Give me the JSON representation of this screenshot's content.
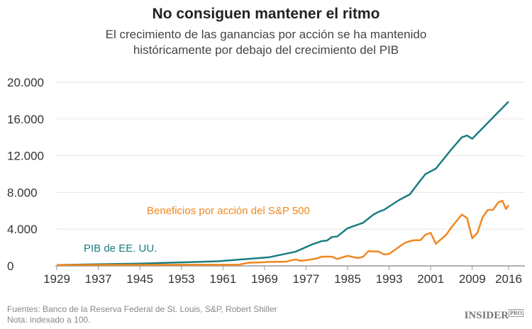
{
  "chart_data": {
    "type": "line",
    "title": "No consiguen mantener el ritmo",
    "subtitle": "El crecimiento de las ganancias por acción se ha mantenido históricamente por debajo del crecimiento del PIB",
    "xlabel": "",
    "ylabel": "",
    "xlim": [
      1929,
      2016
    ],
    "ylim": [
      0,
      20000
    ],
    "x_ticks": [
      "1929",
      "1937",
      "1945",
      "1953",
      "1961",
      "1969",
      "1977",
      "1985",
      "1993",
      "2001",
      "2009",
      "2016"
    ],
    "y_ticks": [
      "0",
      "4.000",
      "8.000",
      "12.000",
      "16.000",
      "20.000"
    ],
    "grid": true,
    "series": [
      {
        "name": "PIB de EE. UU.",
        "color": "#1b7d82",
        "points": [
          [
            1929,
            100
          ],
          [
            1945,
            250
          ],
          [
            1960,
            500
          ],
          [
            1970,
            950
          ],
          [
            1975,
            1550
          ],
          [
            1978,
            2300
          ],
          [
            1980,
            2700
          ],
          [
            1981,
            2750
          ],
          [
            1982,
            3150
          ],
          [
            1983,
            3200
          ],
          [
            1985,
            4100
          ],
          [
            1988,
            4700
          ],
          [
            1990,
            5600
          ],
          [
            1991,
            5900
          ],
          [
            1992,
            6100
          ],
          [
            1995,
            7200
          ],
          [
            1997,
            7800
          ],
          [
            1999,
            9300
          ],
          [
            2000,
            10000
          ],
          [
            2002,
            10600
          ],
          [
            2005,
            12700
          ],
          [
            2007,
            14000
          ],
          [
            2008,
            14200
          ],
          [
            2009,
            13850
          ],
          [
            2016,
            17900
          ]
        ]
      },
      {
        "name": "Beneficios por acción del S&P 500",
        "color": "#f0871f",
        "points": [
          [
            1929,
            100
          ],
          [
            1952,
            130
          ],
          [
            1964,
            130
          ],
          [
            1966,
            350
          ],
          [
            1968,
            380
          ],
          [
            1970,
            430
          ],
          [
            1973,
            450
          ],
          [
            1975,
            700
          ],
          [
            1976,
            550
          ],
          [
            1978,
            700
          ],
          [
            1979,
            800
          ],
          [
            1980,
            1000
          ],
          [
            1982,
            1000
          ],
          [
            1983,
            750
          ],
          [
            1985,
            1100
          ],
          [
            1987,
            850
          ],
          [
            1988,
            1000
          ],
          [
            1989,
            1600
          ],
          [
            1991,
            1550
          ],
          [
            1992,
            1250
          ],
          [
            1993,
            1300
          ],
          [
            1996,
            2500
          ],
          [
            1997,
            2700
          ],
          [
            1998,
            2800
          ],
          [
            1999,
            2800
          ],
          [
            2000,
            3400
          ],
          [
            2001,
            3600
          ],
          [
            2002,
            2400
          ],
          [
            2004,
            3400
          ],
          [
            2005,
            4200
          ],
          [
            2007,
            5600
          ],
          [
            2008,
            5200
          ],
          [
            2009,
            3000
          ],
          [
            2010,
            3600
          ],
          [
            2011,
            5300
          ],
          [
            2012,
            6100
          ],
          [
            2013,
            6100
          ],
          [
            2014,
            6900
          ],
          [
            2014.8,
            7100
          ],
          [
            2015.5,
            6200
          ],
          [
            2016,
            6600
          ]
        ]
      }
    ]
  },
  "footer": {
    "sources": "Fuentes: Banco de la Reserva Federal de St. Louis, S&P, Robert Shiller",
    "note": "Nota: indexado a 100.",
    "logo": "INSIDER",
    "logo_sub": "PRO"
  }
}
